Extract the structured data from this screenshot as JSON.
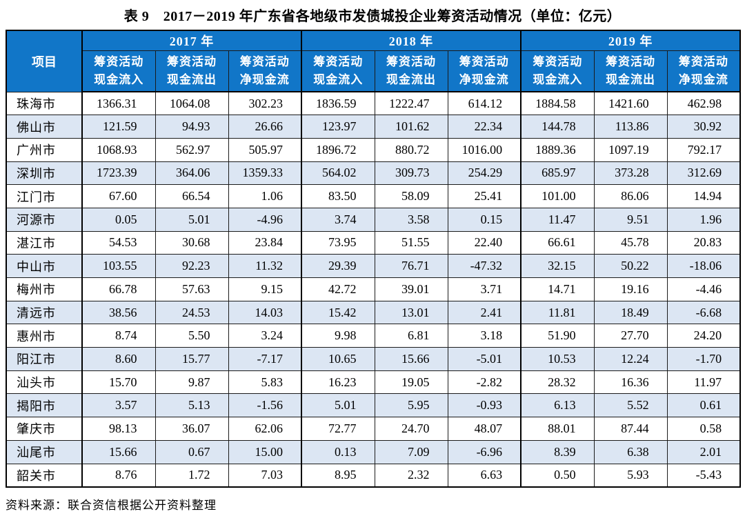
{
  "caption": "表 9　2017－2019 年广东省各地级市发债城投企业筹资活动情况（单位：亿元）",
  "source_note": "资料来源：联合资信根据公开资料整理",
  "colors": {
    "header_bg": "#1176C8",
    "header_text": "#FFFFFF",
    "stripe_bg": "#DCE6F3",
    "border": "#1A1A1A"
  },
  "table": {
    "corner_label": "项目",
    "year_groups": [
      "2017 年",
      "2018 年",
      "2019 年"
    ],
    "metric_headers": [
      {
        "line1": "筹资活动",
        "line2": "现金流入"
      },
      {
        "line1": "筹资活动",
        "line2": "现金流出"
      },
      {
        "line1": "筹资活动",
        "line2": "净现金流"
      },
      {
        "line1": "筹资活动",
        "line2": "现金流入"
      },
      {
        "line1": "筹资活动",
        "line2": "现金流出"
      },
      {
        "line1": "筹资活动",
        "line2": "净现金流"
      },
      {
        "line1": "筹资活动",
        "line2": "现金流入"
      },
      {
        "line1": "筹资活动",
        "line2": "现金流出"
      },
      {
        "line1": "筹资活动",
        "line2": "净现金流"
      }
    ],
    "rows": [
      {
        "city": "珠海市",
        "values": [
          "1366.31",
          "1064.08",
          "302.23",
          "1836.59",
          "1222.47",
          "614.12",
          "1884.58",
          "1421.60",
          "462.98"
        ]
      },
      {
        "city": "佛山市",
        "values": [
          "121.59",
          "94.93",
          "26.66",
          "123.97",
          "101.62",
          "22.34",
          "144.78",
          "113.86",
          "30.92"
        ]
      },
      {
        "city": "广州市",
        "values": [
          "1068.93",
          "562.97",
          "505.97",
          "1896.72",
          "880.72",
          "1016.00",
          "1889.36",
          "1097.19",
          "792.17"
        ]
      },
      {
        "city": "深圳市",
        "values": [
          "1723.39",
          "364.06",
          "1359.33",
          "564.02",
          "309.73",
          "254.29",
          "685.97",
          "373.28",
          "312.69"
        ]
      },
      {
        "city": "江门市",
        "values": [
          "67.60",
          "66.54",
          "1.06",
          "83.50",
          "58.09",
          "25.41",
          "101.00",
          "86.06",
          "14.94"
        ]
      },
      {
        "city": "河源市",
        "values": [
          "0.05",
          "5.01",
          "-4.96",
          "3.74",
          "3.58",
          "0.15",
          "11.47",
          "9.51",
          "1.96"
        ]
      },
      {
        "city": "湛江市",
        "values": [
          "54.53",
          "30.68",
          "23.84",
          "73.95",
          "51.55",
          "22.40",
          "66.61",
          "45.78",
          "20.83"
        ]
      },
      {
        "city": "中山市",
        "values": [
          "103.55",
          "92.23",
          "11.32",
          "29.39",
          "76.71",
          "-47.32",
          "32.15",
          "50.22",
          "-18.06"
        ]
      },
      {
        "city": "梅州市",
        "values": [
          "66.78",
          "57.63",
          "9.15",
          "42.72",
          "39.01",
          "3.71",
          "14.71",
          "19.16",
          "-4.46"
        ]
      },
      {
        "city": "清远市",
        "values": [
          "38.56",
          "24.53",
          "14.03",
          "15.42",
          "13.01",
          "2.41",
          "11.81",
          "18.49",
          "-6.68"
        ]
      },
      {
        "city": "惠州市",
        "values": [
          "8.74",
          "5.50",
          "3.24",
          "9.98",
          "6.81",
          "3.18",
          "51.90",
          "27.70",
          "24.20"
        ]
      },
      {
        "city": "阳江市",
        "values": [
          "8.60",
          "15.77",
          "-7.17",
          "10.65",
          "15.66",
          "-5.01",
          "10.53",
          "12.24",
          "-1.70"
        ]
      },
      {
        "city": "汕头市",
        "values": [
          "15.70",
          "9.87",
          "5.83",
          "16.23",
          "19.05",
          "-2.82",
          "28.32",
          "16.36",
          "11.97"
        ]
      },
      {
        "city": "揭阳市",
        "values": [
          "3.57",
          "5.13",
          "-1.56",
          "5.01",
          "5.95",
          "-0.93",
          "6.13",
          "5.52",
          "0.61"
        ]
      },
      {
        "city": "肇庆市",
        "values": [
          "98.13",
          "36.07",
          "62.06",
          "72.77",
          "24.70",
          "48.07",
          "88.01",
          "87.44",
          "0.58"
        ]
      },
      {
        "city": "汕尾市",
        "values": [
          "15.66",
          "0.67",
          "15.00",
          "0.13",
          "7.09",
          "-6.96",
          "8.39",
          "6.38",
          "2.01"
        ]
      },
      {
        "city": "韶关市",
        "values": [
          "8.76",
          "1.72",
          "7.03",
          "8.95",
          "2.32",
          "6.63",
          "0.50",
          "5.93",
          "-5.43"
        ]
      }
    ]
  }
}
